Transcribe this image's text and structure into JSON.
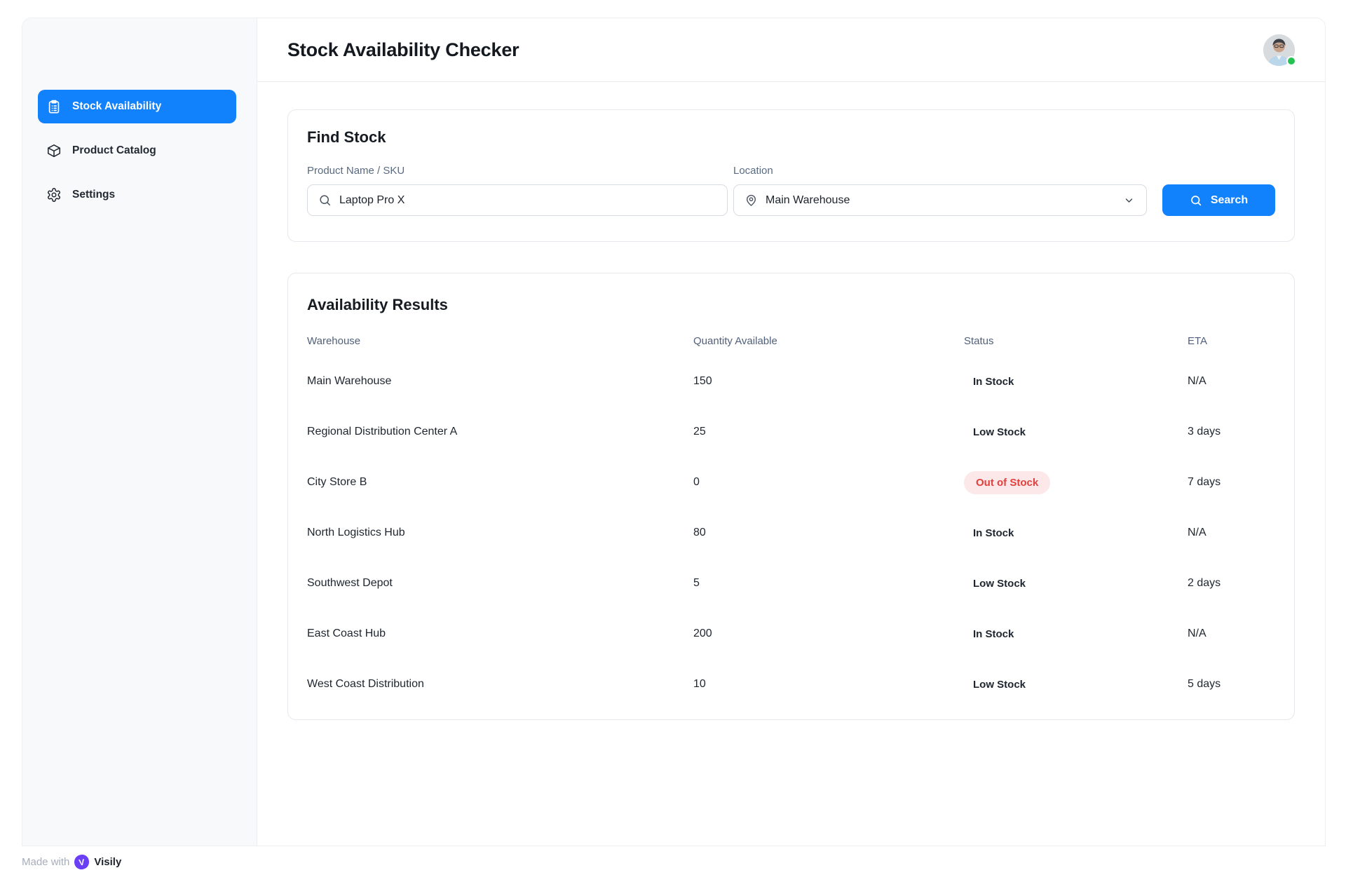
{
  "app": {
    "title": "Stock Availability Checker"
  },
  "sidebar": {
    "items": [
      {
        "label": "Stock Availability",
        "icon": "clipboard-icon",
        "active": true
      },
      {
        "label": "Product Catalog",
        "icon": "package-icon",
        "active": false
      },
      {
        "label": "Settings",
        "icon": "gear-icon",
        "active": false
      }
    ]
  },
  "header": {
    "avatar": "user-avatar",
    "online_indicator": "online"
  },
  "find_stock": {
    "heading": "Find Stock",
    "product_label": "Product Name / SKU",
    "product_value": "Laptop Pro X",
    "product_icon": "search-icon",
    "location_label": "Location",
    "location_value": "Main Warehouse",
    "location_icon": "map-pin-icon",
    "search_label": "Search",
    "search_icon": "search-icon"
  },
  "results": {
    "heading": "Availability Results",
    "columns": [
      "Warehouse",
      "Quantity Available",
      "Status",
      "ETA"
    ],
    "rows": [
      {
        "warehouse": "Main Warehouse",
        "qty": "150",
        "status": "In Stock",
        "badge": false,
        "eta": "N/A"
      },
      {
        "warehouse": "Regional Distribution Center A",
        "qty": "25",
        "status": "Low Stock",
        "badge": false,
        "eta": "3 days"
      },
      {
        "warehouse": "City Store B",
        "qty": "0",
        "status": "Out of Stock",
        "badge": true,
        "eta": "7 days"
      },
      {
        "warehouse": "North Logistics Hub",
        "qty": "80",
        "status": "In Stock",
        "badge": false,
        "eta": "N/A"
      },
      {
        "warehouse": "Southwest Depot",
        "qty": "5",
        "status": "Low Stock",
        "badge": false,
        "eta": "2 days"
      },
      {
        "warehouse": "East Coast Hub",
        "qty": "200",
        "status": "In Stock",
        "badge": false,
        "eta": "N/A"
      },
      {
        "warehouse": "West Coast Distribution",
        "qty": "10",
        "status": "Low Stock",
        "badge": false,
        "eta": "5 days"
      }
    ]
  },
  "footer": {
    "made_with": "Made with",
    "brand_initial": "V",
    "brand": "Visily"
  },
  "colors": {
    "accent_blue": "#1181FC",
    "sidebar_bg": "#F8F9FB",
    "border": "#E6E8ED",
    "table_header_text": "#51607A",
    "out_of_stock_text": "#E2403E",
    "out_of_stock_bg": "#FCE8E8",
    "online_dot": "#27C153",
    "visily_purple": "#6A3FF5"
  }
}
